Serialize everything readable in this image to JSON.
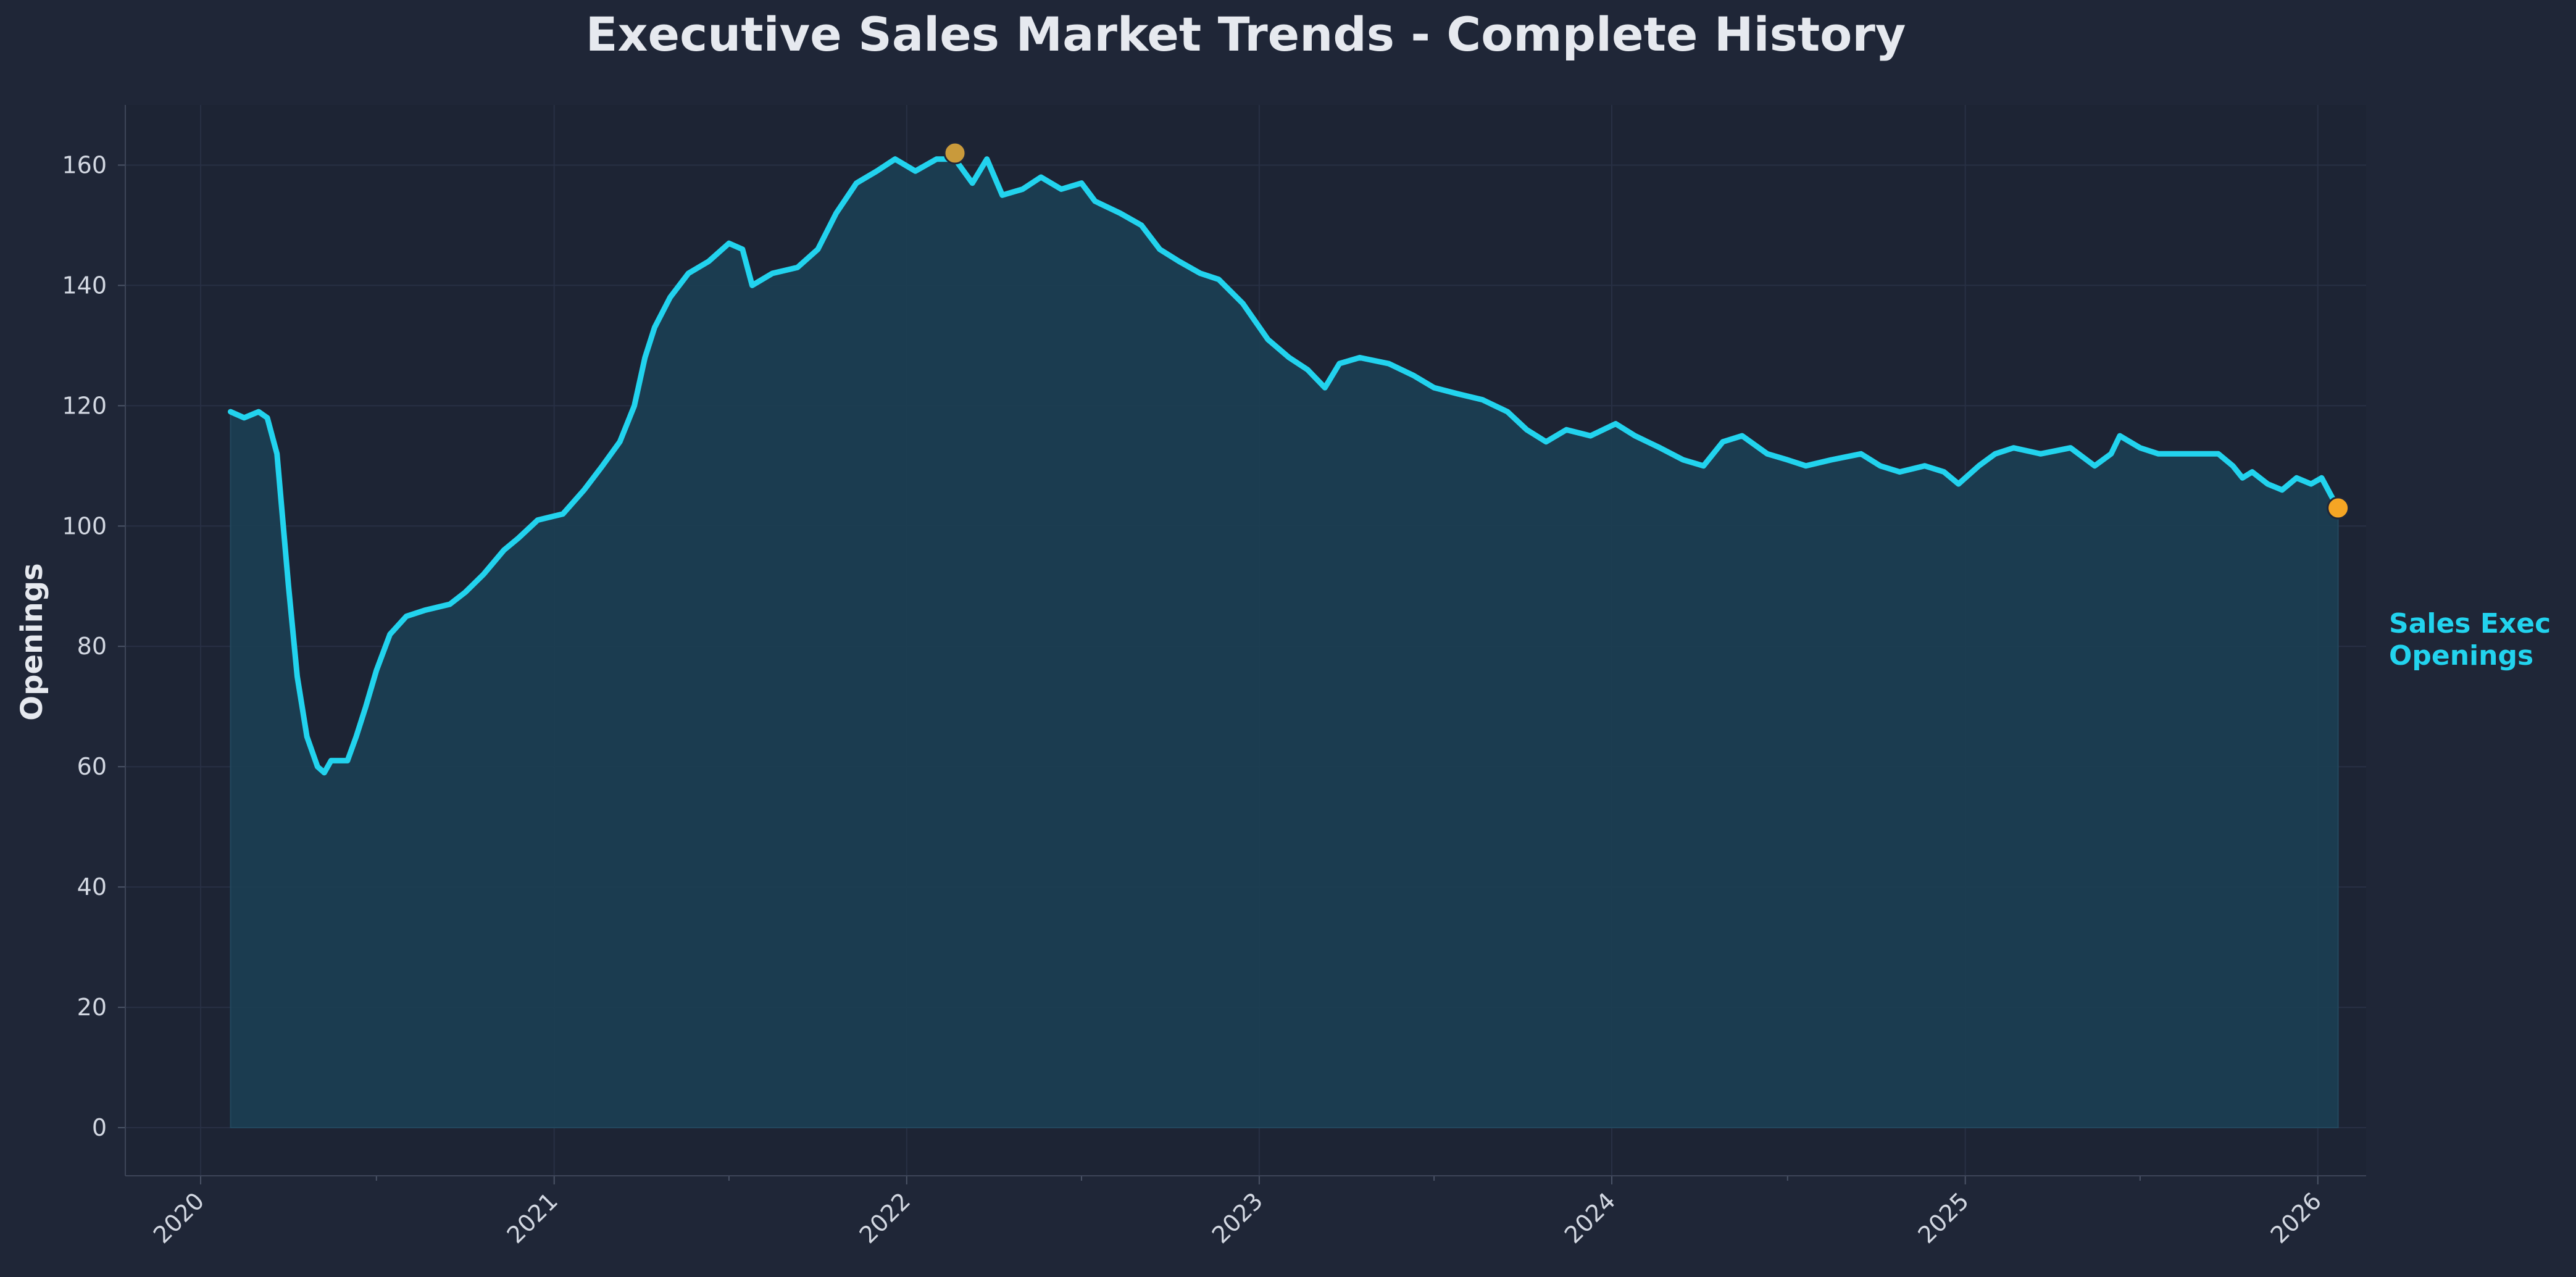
{
  "chart_data": {
    "type": "area",
    "title": "Executive Sales Market Trends - Complete History",
    "ylabel": "Openings",
    "xlabel": "",
    "ylim": [
      -8,
      170
    ],
    "xlim": [
      "2019-10-15",
      "2026-02-20"
    ],
    "y_ticks": [
      0,
      20,
      40,
      60,
      80,
      100,
      120,
      140,
      160
    ],
    "x_ticks": [
      "2020",
      "2021",
      "2022",
      "2023",
      "2024",
      "2025",
      "2026"
    ],
    "grid": true,
    "series": [
      {
        "name": "Sales Exec\nOpenings",
        "color": "#22d3ee",
        "fill_color": "#1b3e52",
        "points": [
          [
            "2020-02-01",
            119
          ],
          [
            "2020-02-15",
            118
          ],
          [
            "2020-03-01",
            119
          ],
          [
            "2020-03-10",
            118
          ],
          [
            "2020-03-20",
            112
          ],
          [
            "2020-04-01",
            90
          ],
          [
            "2020-04-10",
            75
          ],
          [
            "2020-04-20",
            65
          ],
          [
            "2020-05-01",
            60
          ],
          [
            "2020-05-08",
            59
          ],
          [
            "2020-05-15",
            61
          ],
          [
            "2020-06-01",
            61
          ],
          [
            "2020-06-10",
            65
          ],
          [
            "2020-06-20",
            70
          ],
          [
            "2020-07-01",
            76
          ],
          [
            "2020-07-15",
            82
          ],
          [
            "2020-08-01",
            85
          ],
          [
            "2020-08-20",
            86
          ],
          [
            "2020-09-15",
            87
          ],
          [
            "2020-10-01",
            89
          ],
          [
            "2020-10-20",
            92
          ],
          [
            "2020-11-10",
            96
          ],
          [
            "2020-11-25",
            98
          ],
          [
            "2020-12-15",
            101
          ],
          [
            "2021-01-10",
            102
          ],
          [
            "2021-02-01",
            106
          ],
          [
            "2021-02-20",
            110
          ],
          [
            "2021-03-10",
            114
          ],
          [
            "2021-03-25",
            120
          ],
          [
            "2021-04-05",
            128
          ],
          [
            "2021-04-15",
            133
          ],
          [
            "2021-05-01",
            138
          ],
          [
            "2021-05-20",
            142
          ],
          [
            "2021-06-10",
            144
          ],
          [
            "2021-07-01",
            147
          ],
          [
            "2021-07-15",
            146
          ],
          [
            "2021-07-25",
            140
          ],
          [
            "2021-08-15",
            142
          ],
          [
            "2021-09-10",
            143
          ],
          [
            "2021-10-01",
            146
          ],
          [
            "2021-10-20",
            152
          ],
          [
            "2021-11-10",
            157
          ],
          [
            "2021-12-01",
            159
          ],
          [
            "2021-12-20",
            161
          ],
          [
            "2022-01-10",
            159
          ],
          [
            "2022-02-01",
            161
          ],
          [
            "2022-02-20",
            161
          ],
          [
            "2022-03-10",
            157
          ],
          [
            "2022-03-25",
            161
          ],
          [
            "2022-04-10",
            155
          ],
          [
            "2022-05-01",
            156
          ],
          [
            "2022-05-20",
            158
          ],
          [
            "2022-06-10",
            156
          ],
          [
            "2022-07-01",
            157
          ],
          [
            "2022-07-15",
            154
          ],
          [
            "2022-08-10",
            152
          ],
          [
            "2022-09-01",
            150
          ],
          [
            "2022-09-20",
            146
          ],
          [
            "2022-10-10",
            144
          ],
          [
            "2022-11-01",
            142
          ],
          [
            "2022-11-20",
            141
          ],
          [
            "2022-12-15",
            137
          ],
          [
            "2023-01-10",
            131
          ],
          [
            "2023-02-01",
            128
          ],
          [
            "2023-02-20",
            126
          ],
          [
            "2023-03-10",
            123
          ],
          [
            "2023-03-25",
            127
          ],
          [
            "2023-04-15",
            128
          ],
          [
            "2023-05-15",
            127
          ],
          [
            "2023-06-10",
            125
          ],
          [
            "2023-07-01",
            123
          ],
          [
            "2023-07-25",
            122
          ],
          [
            "2023-08-20",
            121
          ],
          [
            "2023-09-15",
            119
          ],
          [
            "2023-10-05",
            116
          ],
          [
            "2023-10-25",
            114
          ],
          [
            "2023-11-15",
            116
          ],
          [
            "2023-12-10",
            115
          ],
          [
            "2024-01-05",
            117
          ],
          [
            "2024-01-25",
            115
          ],
          [
            "2024-02-20",
            113
          ],
          [
            "2024-03-15",
            111
          ],
          [
            "2024-04-05",
            110
          ],
          [
            "2024-04-25",
            114
          ],
          [
            "2024-05-15",
            115
          ],
          [
            "2024-06-10",
            112
          ],
          [
            "2024-07-01",
            111
          ],
          [
            "2024-07-20",
            110
          ],
          [
            "2024-08-15",
            111
          ],
          [
            "2024-09-15",
            112
          ],
          [
            "2024-10-05",
            110
          ],
          [
            "2024-10-25",
            109
          ],
          [
            "2024-11-20",
            110
          ],
          [
            "2024-12-10",
            109
          ],
          [
            "2024-12-25",
            107
          ],
          [
            "2025-01-15",
            110
          ],
          [
            "2025-02-01",
            112
          ],
          [
            "2025-02-20",
            113
          ],
          [
            "2025-03-20",
            112
          ],
          [
            "2025-04-20",
            113
          ],
          [
            "2025-05-15",
            110
          ],
          [
            "2025-06-01",
            112
          ],
          [
            "2025-06-10",
            115
          ],
          [
            "2025-07-01",
            113
          ],
          [
            "2025-07-20",
            112
          ],
          [
            "2025-08-20",
            112
          ],
          [
            "2025-09-20",
            112
          ],
          [
            "2025-10-05",
            110
          ],
          [
            "2025-10-15",
            108
          ],
          [
            "2025-10-25",
            109
          ],
          [
            "2025-11-10",
            107
          ],
          [
            "2025-11-25",
            106
          ],
          [
            "2025-12-10",
            108
          ],
          [
            "2025-12-25",
            107
          ],
          [
            "2026-01-05",
            108
          ],
          [
            "2026-01-15",
            105
          ],
          [
            "2026-01-22",
            103
          ]
        ]
      }
    ],
    "markers": [
      {
        "x": "2022-02-20",
        "y": 162,
        "color": "#c99a3b"
      },
      {
        "x": "2026-01-22",
        "y": 103,
        "color": "#f5a524"
      }
    ]
  }
}
